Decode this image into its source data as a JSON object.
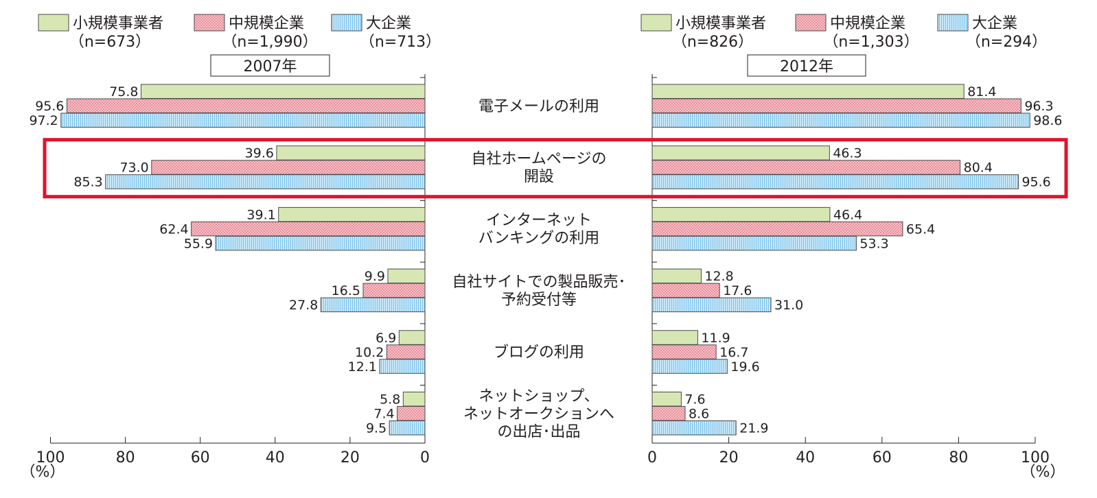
{
  "chart_data": {
    "type": "bar",
    "orientation": "horizontal-butterfly",
    "categories": [
      [
        "電子メールの利用"
      ],
      [
        "自社ホームページの",
        "開設"
      ],
      [
        "インターネット",
        "バンキングの利用"
      ],
      [
        "自社サイトでの製品販売･",
        "予約受付等"
      ],
      [
        "ブログの利用"
      ],
      [
        "ネットショップ、",
        "ネットオークションへ",
        "の出店･出品"
      ]
    ],
    "highlighted_category_index": 1,
    "panels": [
      {
        "year_label": "2007年",
        "direction": "left",
        "xlim": [
          0,
          100
        ],
        "ticks": [
          "0",
          "20",
          "40",
          "60",
          "80",
          "100"
        ],
        "unit": "（%）",
        "series": [
          {
            "name": "小規模事業者",
            "n": "（n=673）",
            "values": [
              75.8,
              39.6,
              39.1,
              9.9,
              6.9,
              5.8
            ],
            "labels": [
              "75.8",
              "39.6",
              "39.1",
              "9.9",
              "6.9",
              "5.8"
            ]
          },
          {
            "name": "中規模企業",
            "n": "（n=1,990）",
            "values": [
              95.6,
              73.0,
              62.4,
              16.5,
              10.2,
              7.4
            ],
            "labels": [
              "95.6",
              "73.0",
              "62.4",
              "16.5",
              "10.2",
              "7.4"
            ]
          },
          {
            "name": "大企業",
            "n": "（n=713）",
            "values": [
              97.2,
              85.3,
              55.9,
              27.8,
              12.1,
              9.5
            ],
            "labels": [
              "97.2",
              "85.3",
              "55.9",
              "27.8",
              "12.1",
              "9.5"
            ]
          }
        ]
      },
      {
        "year_label": "2012年",
        "direction": "right",
        "xlim": [
          0,
          100
        ],
        "ticks": [
          "0",
          "20",
          "40",
          "60",
          "80",
          "100"
        ],
        "unit": "（%）",
        "series": [
          {
            "name": "小規模事業者",
            "n": "（n=826）",
            "values": [
              81.4,
              46.3,
              46.4,
              12.8,
              11.9,
              7.6
            ],
            "labels": [
              "81.4",
              "46.3",
              "46.4",
              "12.8",
              "11.9",
              "7.6"
            ]
          },
          {
            "name": "中規模企業",
            "n": "（n=1,303）",
            "values": [
              96.3,
              80.4,
              65.4,
              17.6,
              16.7,
              8.6
            ],
            "labels": [
              "96.3",
              "80.4",
              "65.4",
              "17.6",
              "16.7",
              "8.6"
            ]
          },
          {
            "name": "大企業",
            "n": "（n=294）",
            "values": [
              98.6,
              95.6,
              53.3,
              31.0,
              19.6,
              21.9
            ],
            "labels": [
              "98.6",
              "95.6",
              "53.3",
              "31.0",
              "19.6",
              "21.9"
            ]
          }
        ]
      }
    ],
    "series_colors": [
      "#d7e7b3",
      "#f4b8bf",
      "#bfe2f6"
    ],
    "highlight_color": "#e0132b"
  }
}
